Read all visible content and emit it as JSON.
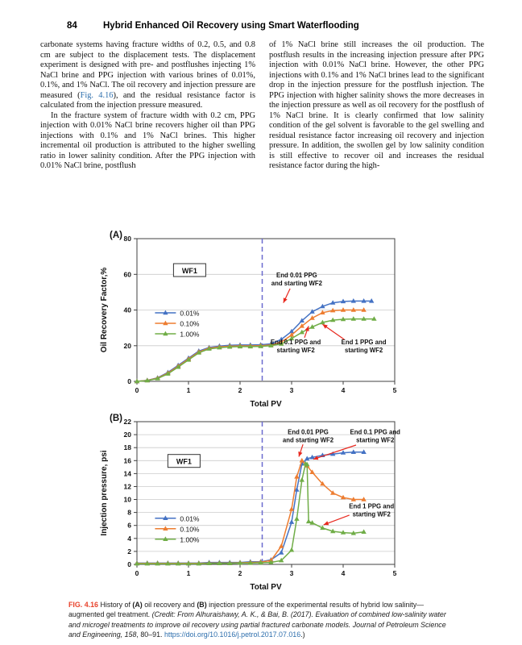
{
  "header": {
    "page_number": "84",
    "running_title": "Hybrid Enhanced Oil Recovery using Smart Waterflooding"
  },
  "body": {
    "left_col": {
      "p1_before_link": "carbonate systems having fracture widths of 0.2, 0.5, and 0.8 cm are subject to the displacement tests. The displacement experiment is designed with pre- and postflushes injecting 1% NaCl brine and PPG injection with various brines of 0.01%, 0.1%, and 1% NaCl. The oil recovery and injection pressure are measured (",
      "p1_link": "Fig. 4.16",
      "p1_after_link": "), and the residual resistance factor is calculated from the injection pressure measured.",
      "p2": "In the fracture system of fracture width with 0.2 cm, PPG injection with 0.01% NaCl brine recovers higher oil than PPG injections with 0.1% and 1% NaCl brines. This higher incremental oil production is attributed to the higher swelling ratio in lower salinity condition. After the PPG injection with 0.01% NaCl brine, postflush"
    },
    "right_col": {
      "p1": "of 1% NaCl brine still increases the oil production. The postflush results in the increasing injection pressure after PPG injection with 0.01% NaCl brine. However, the other PPG injections with 0.1% and 1% NaCl brines lead to the significant drop in the injection pressure for the postflush injection. The PPG injection with higher salinity shows the more decreases in the injection pressure as well as oil recovery for the postflush of 1% NaCl brine. It is clearly confirmed that low salinity condition of the gel solvent is favorable to the gel swelling and residual resistance factor increasing oil recovery and injection pressure. In addition, the swollen gel by low salinity condition is still effective to recover oil and increases the residual resistance factor during the high-"
    }
  },
  "figure": {
    "caption": {
      "label": "FIG. 4.16",
      "t1": "  History of ",
      "b1": "(A)",
      "t2": " oil recovery and ",
      "b2": "(B)",
      "t3": " injection pressure of the experimental results of hybrid low salinity—augmented gel treatment. ",
      "credit": "(Credit: From Alhuraishawy, A. K., & Bai, B. (2017). Evaluation of combined low-salinity water and microgel treatments to improve oil recovery using partial fractured carbonate models. ",
      "journal": "Journal of Petroleum Science and Engineering, 158",
      "t4": ", 80–91. ",
      "doi_link": "https://doi.org/10.1016/j.petrol.2017.07.016",
      "t5": ".)"
    }
  },
  "colors": {
    "grid": "#cbcbcb",
    "axis": "#404040",
    "vline": "#6b6bcf",
    "arrow": "#e8281e",
    "series_blue": "#4472c4",
    "series_orange": "#ed7d31",
    "series_green": "#70ad47",
    "caption_label": "#e8432c",
    "link": "#2e6fad"
  },
  "chart_data": [
    {
      "id": "A",
      "type": "line",
      "panel_label": "(A)",
      "xlabel": "Total PV",
      "ylabel": "Oil Recovery Factor,%",
      "xlim": [
        0,
        5
      ],
      "ylim": [
        0,
        80
      ],
      "xticks": [
        0,
        1,
        2,
        3,
        4,
        5
      ],
      "yticks": [
        0,
        20,
        40,
        60,
        80
      ],
      "grid": "horizontal",
      "vline_x": 2.43,
      "wf1": {
        "label": "WF1",
        "fx": 0.142,
        "fy": 0.175
      },
      "legend": {
        "fx": 0.07,
        "fy": 0.52,
        "position": "inside-left"
      },
      "series": [
        {
          "name": "0.01%",
          "color": "#4472c4",
          "points": [
            [
              0,
              0
            ],
            [
              0.2,
              0.6
            ],
            [
              0.4,
              2
            ],
            [
              0.6,
              5
            ],
            [
              0.8,
              9
            ],
            [
              1.0,
              13
            ],
            [
              1.2,
              17
            ],
            [
              1.4,
              19
            ],
            [
              1.6,
              19.8
            ],
            [
              1.8,
              20.2
            ],
            [
              2.0,
              20.4
            ],
            [
              2.2,
              20.4
            ],
            [
              2.4,
              20.5
            ],
            [
              2.6,
              21
            ],
            [
              2.8,
              23.5
            ],
            [
              3.0,
              28
            ],
            [
              3.2,
              34
            ],
            [
              3.4,
              39
            ],
            [
              3.6,
              42
            ],
            [
              3.8,
              44
            ],
            [
              4.0,
              44.8
            ],
            [
              4.2,
              45
            ],
            [
              4.4,
              45
            ],
            [
              4.55,
              45
            ]
          ]
        },
        {
          "name": "0.10%",
          "color": "#ed7d31",
          "points": [
            [
              0,
              0
            ],
            [
              0.2,
              0.5
            ],
            [
              0.4,
              1.8
            ],
            [
              0.6,
              4.6
            ],
            [
              0.8,
              8.5
            ],
            [
              1.0,
              12.5
            ],
            [
              1.2,
              16.5
            ],
            [
              1.4,
              18.6
            ],
            [
              1.6,
              19.3
            ],
            [
              1.8,
              19.7
            ],
            [
              2.0,
              19.9
            ],
            [
              2.2,
              19.9
            ],
            [
              2.4,
              20
            ],
            [
              2.6,
              20.4
            ],
            [
              2.8,
              22
            ],
            [
              3.0,
              26
            ],
            [
              3.2,
              31
            ],
            [
              3.4,
              35.5
            ],
            [
              3.6,
              38.5
            ],
            [
              3.8,
              39.7
            ],
            [
              4.0,
              40
            ],
            [
              4.2,
              40
            ],
            [
              4.4,
              40
            ]
          ]
        },
        {
          "name": "1.00%",
          "color": "#70ad47",
          "points": [
            [
              0,
              0
            ],
            [
              0.2,
              0.4
            ],
            [
              0.4,
              1.6
            ],
            [
              0.6,
              4.2
            ],
            [
              0.8,
              8
            ],
            [
              1.0,
              12
            ],
            [
              1.2,
              16
            ],
            [
              1.4,
              18.2
            ],
            [
              1.6,
              18.9
            ],
            [
              1.8,
              19.3
            ],
            [
              2.0,
              19.5
            ],
            [
              2.2,
              19.5
            ],
            [
              2.4,
              19.6
            ],
            [
              2.6,
              20
            ],
            [
              2.8,
              21
            ],
            [
              3.0,
              24
            ],
            [
              3.2,
              27.5
            ],
            [
              3.4,
              30.5
            ],
            [
              3.6,
              33
            ],
            [
              3.8,
              34.3
            ],
            [
              4.0,
              34.8
            ],
            [
              4.2,
              35
            ],
            [
              4.4,
              35
            ],
            [
              4.6,
              35
            ]
          ]
        }
      ],
      "annotations": [
        {
          "lines": [
            "End 0.01 PPG",
            "and starting WF2"
          ],
          "tx": 3.1,
          "ty": 57.5,
          "arrow": {
            "x1": 2.97,
            "y1": 52,
            "x2": 2.84,
            "y2": 44
          }
        },
        {
          "lines": [
            "End 0.1 PPG and",
            "starting WF2"
          ],
          "tx": 3.08,
          "ty": 20,
          "arrow": {
            "x1": 3.25,
            "y1": 24.5,
            "x2": 3.33,
            "y2": 31
          }
        },
        {
          "lines": [
            "End 1 PPG and",
            "starting WF2"
          ],
          "tx": 4.4,
          "ty": 20,
          "arrow": {
            "x1": 4.02,
            "y1": 23.5,
            "x2": 3.6,
            "y2": 32
          }
        }
      ]
    },
    {
      "id": "B",
      "type": "line",
      "panel_label": "(B)",
      "xlabel": "Total PV",
      "ylabel": "Injection pressure, psi",
      "xlim": [
        0,
        5
      ],
      "ylim": [
        0,
        22
      ],
      "xticks": [
        0,
        1,
        2,
        3,
        4,
        5
      ],
      "yticks": [
        0,
        2,
        4,
        6,
        8,
        10,
        12,
        14,
        16,
        18,
        20,
        22
      ],
      "grid": "horizontal",
      "vline_x": 2.43,
      "wf1": {
        "label": "WF1",
        "fx": 0.12,
        "fy": 0.23
      },
      "legend": {
        "fx": 0.07,
        "fy": 0.677,
        "position": "inside-left"
      },
      "series": [
        {
          "name": "0.01%",
          "color": "#4472c4",
          "points": [
            [
              0,
              0.2
            ],
            [
              0.2,
              0.2
            ],
            [
              0.4,
              0.2
            ],
            [
              0.6,
              0.2
            ],
            [
              0.8,
              0.2
            ],
            [
              1.0,
              0.2
            ],
            [
              1.2,
              0.2
            ],
            [
              1.4,
              0.3
            ],
            [
              1.6,
              0.3
            ],
            [
              1.8,
              0.3
            ],
            [
              2.0,
              0.3
            ],
            [
              2.2,
              0.4
            ],
            [
              2.4,
              0.4
            ],
            [
              2.6,
              0.7
            ],
            [
              2.8,
              1.8
            ],
            [
              3.0,
              6.5
            ],
            [
              3.1,
              11.5
            ],
            [
              3.2,
              15.5
            ],
            [
              3.3,
              16.3
            ],
            [
              3.4,
              16.5
            ],
            [
              3.6,
              16.8
            ],
            [
              3.8,
              17
            ],
            [
              4.0,
              17.2
            ],
            [
              4.2,
              17.3
            ],
            [
              4.4,
              17.3
            ]
          ]
        },
        {
          "name": "0.10%",
          "color": "#ed7d31",
          "points": [
            [
              0,
              0.15
            ],
            [
              0.2,
              0.15
            ],
            [
              0.4,
              0.15
            ],
            [
              0.6,
              0.15
            ],
            [
              0.8,
              0.15
            ],
            [
              1.0,
              0.15
            ],
            [
              1.2,
              0.15
            ],
            [
              1.4,
              0.2
            ],
            [
              1.6,
              0.2
            ],
            [
              1.8,
              0.2
            ],
            [
              2.0,
              0.25
            ],
            [
              2.2,
              0.3
            ],
            [
              2.4,
              0.35
            ],
            [
              2.6,
              0.6
            ],
            [
              2.8,
              2.8
            ],
            [
              3.0,
              8.5
            ],
            [
              3.1,
              13.5
            ],
            [
              3.2,
              16
            ],
            [
              3.3,
              15.2
            ],
            [
              3.4,
              14.2
            ],
            [
              3.6,
              12.4
            ],
            [
              3.8,
              11
            ],
            [
              4.0,
              10.3
            ],
            [
              4.2,
              10
            ],
            [
              4.4,
              10
            ]
          ]
        },
        {
          "name": "1.00%",
          "color": "#70ad47",
          "points": [
            [
              0,
              0.1
            ],
            [
              0.2,
              0.1
            ],
            [
              0.4,
              0.1
            ],
            [
              0.6,
              0.1
            ],
            [
              0.8,
              0.1
            ],
            [
              1.0,
              0.1
            ],
            [
              1.2,
              0.1
            ],
            [
              1.4,
              0.15
            ],
            [
              1.6,
              0.15
            ],
            [
              1.8,
              0.15
            ],
            [
              2.0,
              0.2
            ],
            [
              2.2,
              0.2
            ],
            [
              2.4,
              0.25
            ],
            [
              2.6,
              0.3
            ],
            [
              2.8,
              0.6
            ],
            [
              3.0,
              2.2
            ],
            [
              3.1,
              7
            ],
            [
              3.2,
              13
            ],
            [
              3.27,
              15.5
            ],
            [
              3.3,
              15.4
            ],
            [
              3.33,
              6.6
            ],
            [
              3.4,
              6.4
            ],
            [
              3.6,
              5.6
            ],
            [
              3.8,
              5.1
            ],
            [
              4.0,
              4.9
            ],
            [
              4.2,
              4.8
            ],
            [
              4.4,
              5
            ]
          ]
        }
      ],
      "annotations": [
        {
          "lines": [
            "End 0.01 PPG",
            "and starting WF2"
          ],
          "tx": 3.32,
          "ty": 19.8,
          "arrow": {
            "x1": 3.22,
            "y1": 18.5,
            "x2": 3.14,
            "y2": 16.6
          }
        },
        {
          "lines": [
            "End 0.1 PPG and",
            "starting WF2"
          ],
          "tx": 4.62,
          "ty": 19.8,
          "arrow": {
            "x1": 4.25,
            "y1": 18.4,
            "x2": 3.42,
            "y2": 16.2
          }
        },
        {
          "lines": [
            "End 1 PPG and",
            "starting WF2"
          ],
          "tx": 4.55,
          "ty": 8.4,
          "arrow": {
            "x1": 4.12,
            "y1": 7.6,
            "x2": 3.62,
            "y2": 6.1
          }
        }
      ]
    }
  ]
}
